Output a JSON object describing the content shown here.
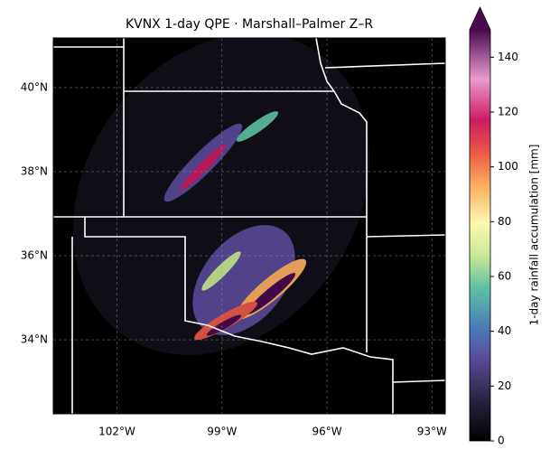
{
  "title": "KVNX 1-day QPE · Marshall–Palmer Z–R",
  "map": {
    "lon_lim": [
      -103.82,
      -92.62
    ],
    "lat_lim": [
      32.24,
      41.18
    ],
    "lon_ticks": [
      {
        "value": -102,
        "label": "102°W"
      },
      {
        "value": -99,
        "label": "99°W"
      },
      {
        "value": -96,
        "label": "96°W"
      },
      {
        "value": -93,
        "label": "93°W"
      }
    ],
    "lat_ticks": [
      {
        "value": 34,
        "label": "34°N"
      },
      {
        "value": 36,
        "label": "36°N"
      },
      {
        "value": 38,
        "label": "38°N"
      },
      {
        "value": 40,
        "label": "40°N"
      }
    ]
  },
  "colorbar": {
    "label": "1-day rainfall accumulation [mm]",
    "lim": [
      0,
      150
    ],
    "ticks": [
      0,
      20,
      40,
      60,
      80,
      100,
      120,
      140
    ]
  }
}
